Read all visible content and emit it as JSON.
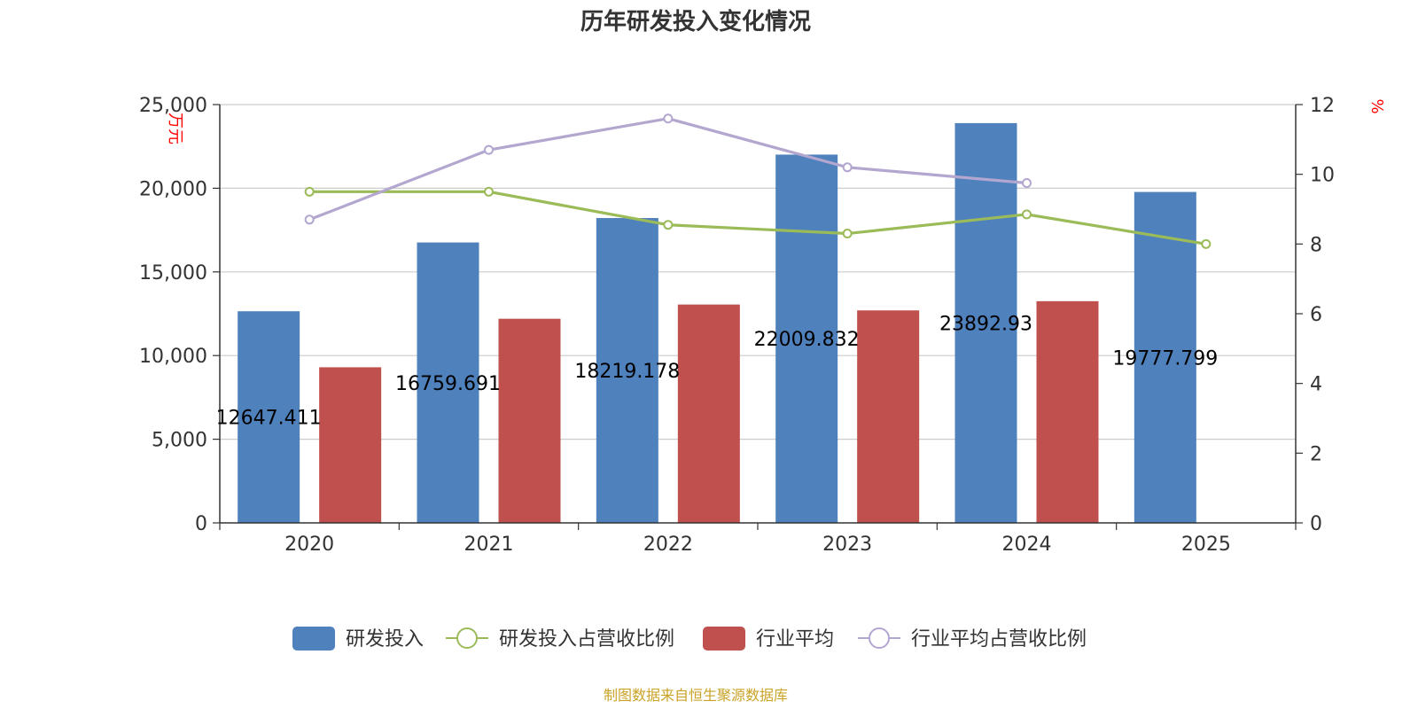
{
  "chart_data": {
    "type": "bar",
    "title": "历年研发投入变化情况",
    "categories": [
      "2020",
      "2021",
      "2022",
      "2023",
      "2024",
      "2025"
    ],
    "y_left": {
      "unit": "万元",
      "min": 0,
      "max": 25000,
      "ticks": [
        "0",
        "5,000",
        "10,000",
        "15,000",
        "20,000",
        "25,000"
      ]
    },
    "y_right": {
      "unit": "%",
      "min": 0,
      "max": 12,
      "ticks": [
        "0",
        "2",
        "4",
        "6",
        "8",
        "10",
        "12"
      ]
    },
    "grid": true,
    "legend_position": "bottom",
    "series": [
      {
        "name": "研发投入",
        "type": "bar",
        "axis": "left",
        "color": "#4f81bd",
        "values": [
          12647.411,
          16759.691,
          18219.178,
          22009.832,
          23892.93,
          19777.799
        ],
        "labels": [
          "12647.411",
          "16759.691",
          "18219.178",
          "22009.832",
          "23892.93",
          "19777.799"
        ]
      },
      {
        "name": "研发投入占营收比例",
        "type": "line",
        "axis": "right",
        "color": "#9bbb59",
        "values": [
          9.5,
          9.5,
          8.55,
          8.3,
          8.85,
          8.0
        ]
      },
      {
        "name": "行业平均",
        "type": "bar",
        "axis": "left",
        "color": "#c0504d",
        "values": [
          9300,
          12200,
          13050,
          12700,
          13250,
          null
        ]
      },
      {
        "name": "行业平均占营收比例",
        "type": "line",
        "axis": "right",
        "color": "#b3a6cf",
        "values": [
          8.7,
          10.7,
          11.6,
          10.2,
          9.75,
          null
        ]
      }
    ],
    "source": "制图数据来自恒生聚源数据库"
  }
}
